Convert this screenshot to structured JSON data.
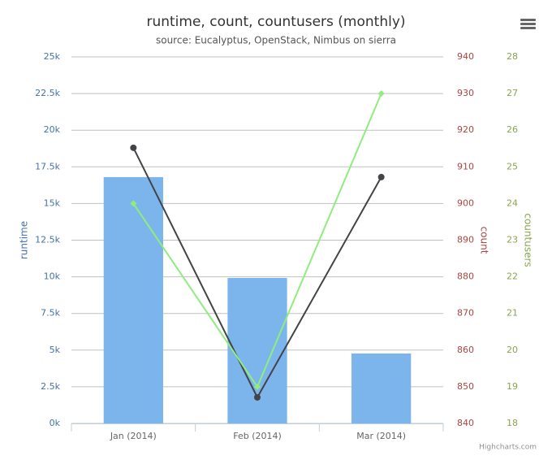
{
  "chart_data": {
    "type": "bar",
    "title": "runtime, count, countusers (monthly)",
    "subtitle": "source: Eucalyptus, OpenStack, Nimbus on sierra",
    "categories": [
      "Jan (2014)",
      "Feb (2014)",
      "Mar (2014)"
    ],
    "ylabel": "runtime",
    "y2label": "count",
    "y3label": "countusers",
    "ycolor": "#4572a7",
    "y2color": "#aa4643",
    "y3color": "#89a54e",
    "ylim": [
      0,
      25000
    ],
    "yticks": [
      {
        "value": 0,
        "label": "0k"
      },
      {
        "value": 2500,
        "label": "2.5k"
      },
      {
        "value": 5000,
        "label": "5k"
      },
      {
        "value": 7500,
        "label": "7.5k"
      },
      {
        "value": 10000,
        "label": "10k"
      },
      {
        "value": 12500,
        "label": "12.5k"
      },
      {
        "value": 15000,
        "label": "15k"
      },
      {
        "value": 17500,
        "label": "17.5k"
      },
      {
        "value": 20000,
        "label": "20k"
      },
      {
        "value": 22500,
        "label": "22.5k"
      },
      {
        "value": 25000,
        "label": "25k"
      }
    ],
    "y2lim": [
      840,
      940
    ],
    "y2ticks": [
      840,
      850,
      860,
      870,
      880,
      890,
      900,
      910,
      920,
      930,
      940
    ],
    "y3lim": [
      18,
      28
    ],
    "y3ticks": [
      18,
      19,
      20,
      21,
      22,
      23,
      24,
      25,
      26,
      27,
      28
    ],
    "grid": true,
    "series": [
      {
        "name": "runtime",
        "type": "bar",
        "axis": "y",
        "color": "#7cb5ec",
        "values": [
          16800,
          9920,
          4770
        ]
      },
      {
        "name": "count",
        "type": "line",
        "axis": "y2",
        "color": "#434348",
        "values": [
          915.2,
          847.1,
          907.2
        ]
      },
      {
        "name": "countusers",
        "type": "line",
        "axis": "y3",
        "color": "#90ed7d",
        "values": [
          24,
          19,
          27
        ]
      }
    ],
    "credits": "Highcharts.com"
  }
}
